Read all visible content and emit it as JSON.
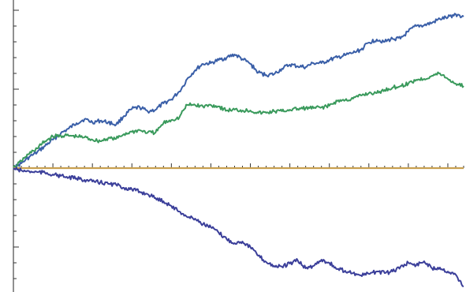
{
  "chart_data": {
    "type": "line",
    "title": "",
    "xlabel": "",
    "ylabel": "",
    "grid": false,
    "legend": "none",
    "tick_labels_visible": false,
    "xlim": [
      0,
      570
    ],
    "ylim": [
      -153,
      206
    ],
    "series": [
      {
        "color": "#3a5fa8",
        "x": [
          0,
          5,
          10,
          15,
          20,
          25,
          30,
          40,
          50,
          60,
          70,
          80,
          90,
          100,
          110,
          120,
          130,
          140,
          150,
          160,
          170,
          180,
          190,
          200,
          210,
          215,
          220,
          230,
          240,
          250,
          260,
          270,
          280,
          290,
          300,
          310,
          320,
          330,
          340,
          350,
          360,
          370,
          380,
          390,
          400,
          410,
          420,
          430,
          440,
          450,
          460,
          470,
          480,
          490,
          500,
          510,
          520,
          530,
          540,
          550,
          560,
          570
        ],
        "y": [
          0,
          3,
          6,
          10,
          14,
          17,
          20,
          28,
          36,
          44,
          50,
          57,
          62,
          58,
          60,
          58,
          55,
          66,
          75,
          77,
          72,
          74,
          82,
          87,
          97,
          104,
          113,
          124,
          132,
          133,
          137,
          140,
          144,
          138,
          132,
          121,
          118,
          119,
          126,
          131,
          129,
          128,
          133,
          133,
          137,
          140,
          143,
          146,
          150,
          159,
          163,
          160,
          164,
          164,
          173,
          180,
          181,
          184,
          189,
          191,
          195,
          192
        ]
      },
      {
        "color": "#3a9a5c",
        "x": [
          0,
          5,
          10,
          15,
          20,
          25,
          30,
          40,
          50,
          60,
          70,
          80,
          90,
          100,
          110,
          120,
          130,
          140,
          150,
          160,
          170,
          180,
          190,
          200,
          210,
          215,
          220,
          230,
          240,
          250,
          260,
          270,
          280,
          290,
          300,
          310,
          320,
          330,
          340,
          350,
          360,
          370,
          380,
          390,
          400,
          410,
          420,
          430,
          440,
          450,
          460,
          470,
          480,
          490,
          500,
          510,
          520,
          530,
          540,
          550,
          560,
          570
        ],
        "y": [
          0,
          4,
          9,
          14,
          18,
          22,
          25,
          34,
          40,
          41,
          41,
          40,
          39,
          36,
          34,
          38,
          37,
          43,
          46,
          48,
          45,
          45,
          57,
          61,
          64,
          73,
          80,
          80,
          78,
          80,
          78,
          73,
          74,
          73,
          73,
          70,
          70,
          72,
          72,
          74,
          75,
          76,
          76,
          77,
          79,
          85,
          86,
          88,
          92,
          95,
          95,
          99,
          102,
          104,
          107,
          112,
          113,
          117,
          120,
          113,
          107,
          104
        ]
      },
      {
        "color": "#c8a050",
        "x": [
          0,
          570
        ],
        "y": [
          0,
          0
        ]
      },
      {
        "color": "#3b3f9a",
        "x": [
          0,
          5,
          10,
          15,
          20,
          25,
          30,
          40,
          50,
          60,
          70,
          80,
          90,
          100,
          110,
          120,
          130,
          140,
          150,
          160,
          170,
          180,
          190,
          200,
          210,
          215,
          220,
          230,
          240,
          250,
          260,
          270,
          280,
          290,
          300,
          310,
          320,
          330,
          340,
          350,
          360,
          370,
          380,
          390,
          400,
          410,
          420,
          430,
          440,
          450,
          460,
          470,
          480,
          490,
          500,
          510,
          520,
          530,
          540,
          550,
          560,
          570
        ],
        "y": [
          0,
          -2,
          -3,
          -4,
          -4,
          -5,
          -5,
          -6,
          -8,
          -10,
          -12,
          -13,
          -15,
          -17,
          -18,
          -20,
          -21,
          -25,
          -27,
          -30,
          -33,
          -38,
          -42,
          -48,
          -55,
          -58,
          -62,
          -64,
          -71,
          -75,
          -82,
          -90,
          -95,
          -93,
          -100,
          -111,
          -119,
          -124,
          -125,
          -121,
          -117,
          -127,
          -124,
          -116,
          -120,
          -128,
          -130,
          -133,
          -136,
          -134,
          -131,
          -133,
          -131,
          -125,
          -120,
          -123,
          -118,
          -127,
          -126,
          -131,
          -135,
          -150
        ]
      }
    ]
  }
}
